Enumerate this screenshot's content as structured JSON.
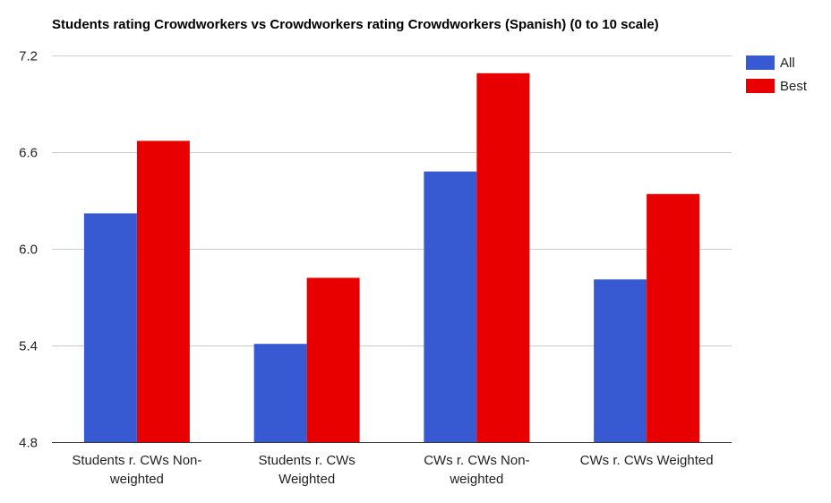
{
  "chart_data": {
    "type": "bar",
    "title": "Students rating Crowdworkers vs Crowdworkers rating Crowdworkers (Spanish) (0 to 10 scale)",
    "xlabel": "",
    "ylabel": "",
    "categories": [
      [
        "Students r. CWs Non-",
        "weighted"
      ],
      [
        "Students r. CWs",
        "Weighted"
      ],
      [
        "CWs r. CWs Non-",
        "weighted"
      ],
      [
        "CWs r. CWs Weighted"
      ]
    ],
    "series": [
      {
        "name": "All",
        "color": "#3759d1",
        "values": [
          6.22,
          5.41,
          6.48,
          5.81
        ]
      },
      {
        "name": "Best",
        "color": "#e80000",
        "values": [
          6.67,
          5.82,
          7.09,
          6.34
        ]
      }
    ],
    "ylim": [
      4.8,
      7.2
    ],
    "yticks": [
      "7.2",
      "6.6",
      "6.0",
      "5.4",
      "4.8"
    ],
    "grid": true,
    "legend": "top-right"
  }
}
